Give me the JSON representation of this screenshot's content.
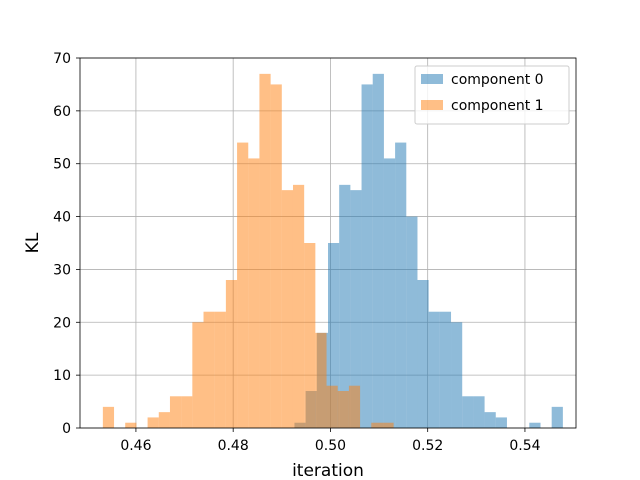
{
  "chart_data": {
    "type": "histogram",
    "title": "",
    "xlabel": "iteration",
    "ylabel": "KL",
    "xlim": [
      0.4485,
      0.5505
    ],
    "ylim": [
      0,
      70
    ],
    "xticks": [
      0.46,
      0.48,
      0.5,
      0.52,
      0.54
    ],
    "xtick_labels": [
      "0.46",
      "0.48",
      "0.50",
      "0.52",
      "0.54"
    ],
    "yticks": [
      0,
      10,
      20,
      30,
      40,
      50,
      60,
      70
    ],
    "ytick_labels": [
      "0",
      "10",
      "20",
      "30",
      "40",
      "50",
      "60",
      "70"
    ],
    "grid": true,
    "legend_position": "upper right",
    "series": [
      {
        "name": "component 0",
        "color": "#1f77b4",
        "alpha": 0.5,
        "bin_edges": [
          0.4926,
          0.4949,
          0.4972,
          0.4995,
          0.5018,
          0.5041,
          0.5064,
          0.5087,
          0.511,
          0.5133,
          0.5156,
          0.5179,
          0.5202,
          0.5225,
          0.5248,
          0.5271,
          0.5294,
          0.5317,
          0.534,
          0.5363,
          0.5386,
          0.5409,
          0.5432,
          0.5455,
          0.5478
        ],
        "values": [
          1,
          7,
          18,
          35,
          46,
          45,
          65,
          67,
          51,
          54,
          40,
          28,
          22,
          22,
          20,
          6,
          6,
          3,
          2,
          0,
          0,
          1,
          0,
          4
        ]
      },
      {
        "name": "component 1",
        "color": "#ff7f0e",
        "alpha": 0.5,
        "bin_edges": [
          0.4532,
          0.4555,
          0.4578,
          0.4601,
          0.4624,
          0.4647,
          0.467,
          0.4693,
          0.4716,
          0.4739,
          0.4762,
          0.4785,
          0.4808,
          0.4831,
          0.4854,
          0.4877,
          0.49,
          0.4923,
          0.4946,
          0.4969,
          0.4992,
          0.5015,
          0.5038,
          0.5061,
          0.5084,
          0.5107,
          0.513
        ],
        "values": [
          4,
          0,
          1,
          0,
          2,
          3,
          6,
          6,
          20,
          22,
          22,
          28,
          54,
          51,
          67,
          65,
          45,
          46,
          35,
          18,
          8,
          7,
          8,
          0,
          1,
          1
        ]
      }
    ]
  }
}
